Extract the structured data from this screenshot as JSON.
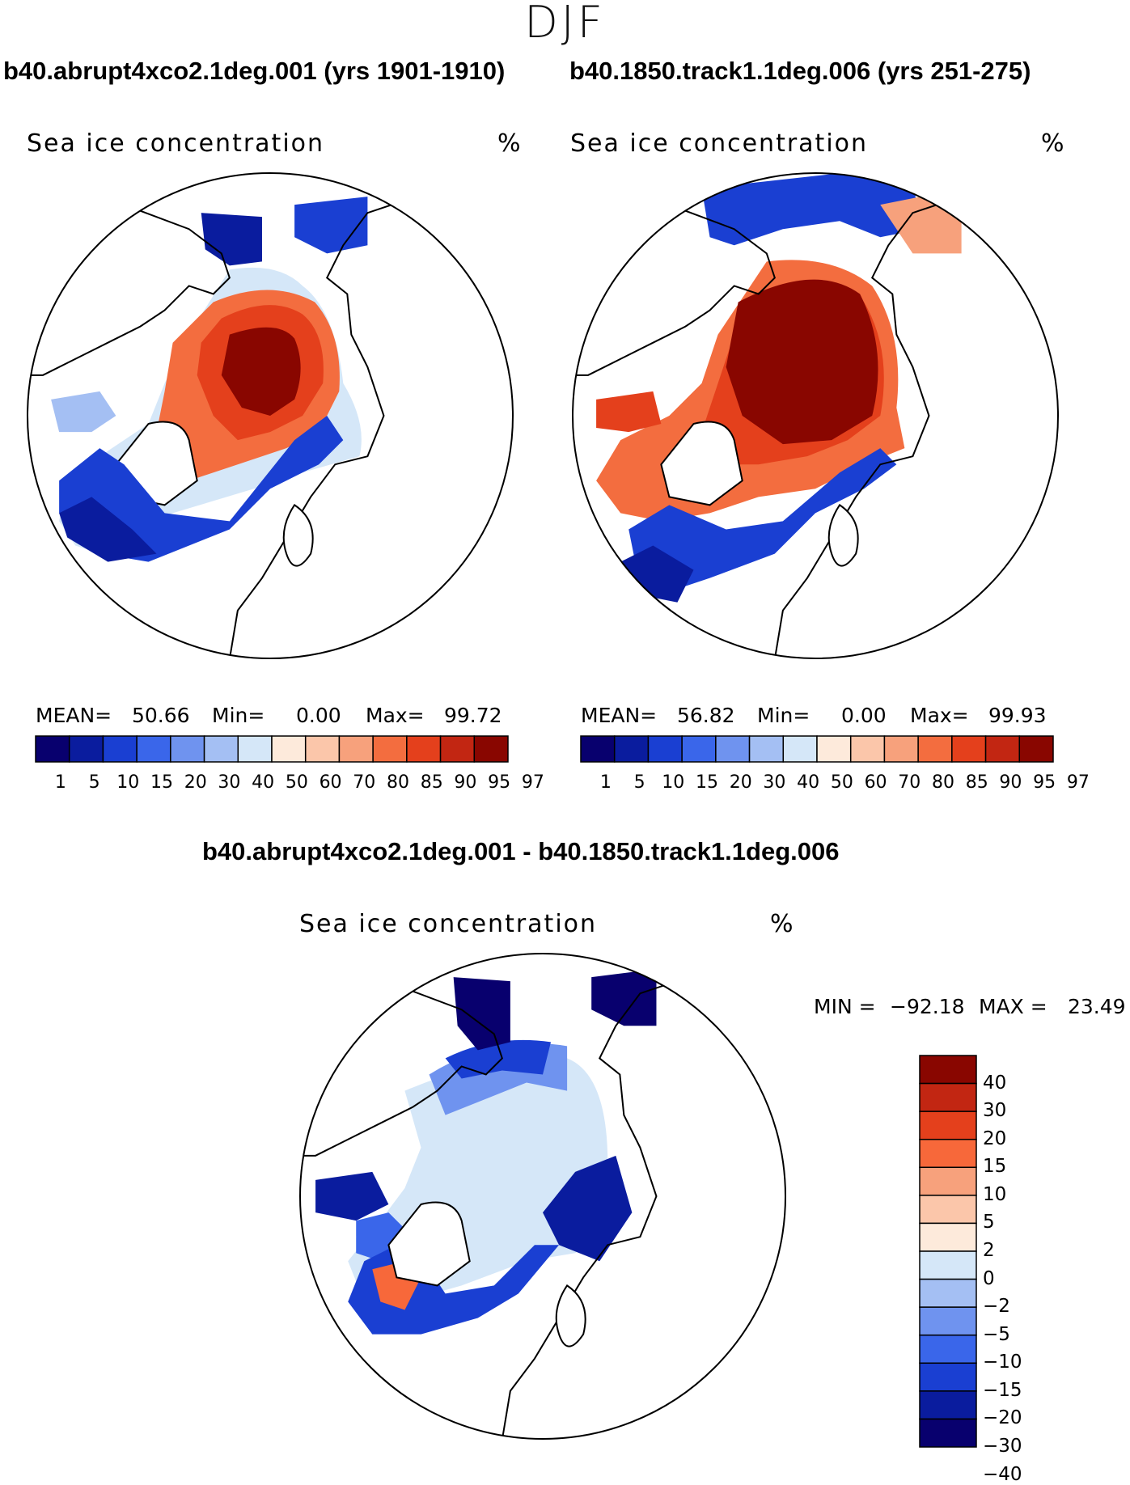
{
  "season": "DJF",
  "diff_title": "b40.abrupt4xco2.1deg.001 - b40.1850.track1.1deg.006",
  "colors": {
    "scale14": [
      "#08006e",
      "#0a1c9e",
      "#1a3fd2",
      "#3a66ea",
      "#6f93ef",
      "#a4bff3",
      "#d5e7f8",
      "#fdeadb",
      "#fbc6aa",
      "#f7a17c",
      "#f36d3f",
      "#e4401c",
      "#c22612",
      "#890600"
    ],
    "diff": [
      "#08006e",
      "#0a1c9e",
      "#1a3fd2",
      "#3a66ea",
      "#6f93ef",
      "#a4bff3",
      "#d5e7f8",
      "#fdeadb",
      "#fbc6aa",
      "#f7a17c",
      "#f7683a",
      "#e4401c",
      "#c22612",
      "#890600"
    ]
  },
  "chart_data": [
    {
      "type": "heatmap",
      "title": "b40.abrupt4xco2.1deg.001 (yrs 1901-1910)",
      "variable": "Sea ice concentration",
      "units": "%",
      "stats": {
        "mean_label": "MEAN=",
        "mean": "50.66",
        "min_label": "Min=",
        "min": "0.00",
        "max_label": "Max=",
        "max": "99.72"
      },
      "colorbar_levels": [
        "1",
        "5",
        "10",
        "15",
        "20",
        "30",
        "40",
        "50",
        "60",
        "70",
        "80",
        "85",
        "90",
        "95",
        "97"
      ]
    },
    {
      "type": "heatmap",
      "title": "b40.1850.track1.1deg.006 (yrs 251-275)",
      "variable": "Sea ice concentration",
      "units": "%",
      "stats": {
        "mean_label": "MEAN=",
        "mean": "56.82",
        "min_label": "Min=",
        "min": "0.00",
        "max_label": "Max=",
        "max": "99.93"
      },
      "colorbar_levels": [
        "1",
        "5",
        "10",
        "15",
        "20",
        "30",
        "40",
        "50",
        "60",
        "70",
        "80",
        "85",
        "90",
        "95",
        "97"
      ]
    },
    {
      "type": "heatmap",
      "title": "b40.abrupt4xco2.1deg.001 - b40.1850.track1.1deg.006",
      "variable": "Sea ice concentration",
      "units": "%",
      "stats": {
        "min_label": "MIN =",
        "min": "−92.18",
        "max_label": "MAX =",
        "max": "23.49"
      },
      "colorbar_levels": [
        "40",
        "30",
        "20",
        "15",
        "10",
        "5",
        "2",
        "0",
        "−2",
        "−5",
        "−10",
        "−15",
        "−20",
        "−30",
        "−40"
      ]
    }
  ]
}
